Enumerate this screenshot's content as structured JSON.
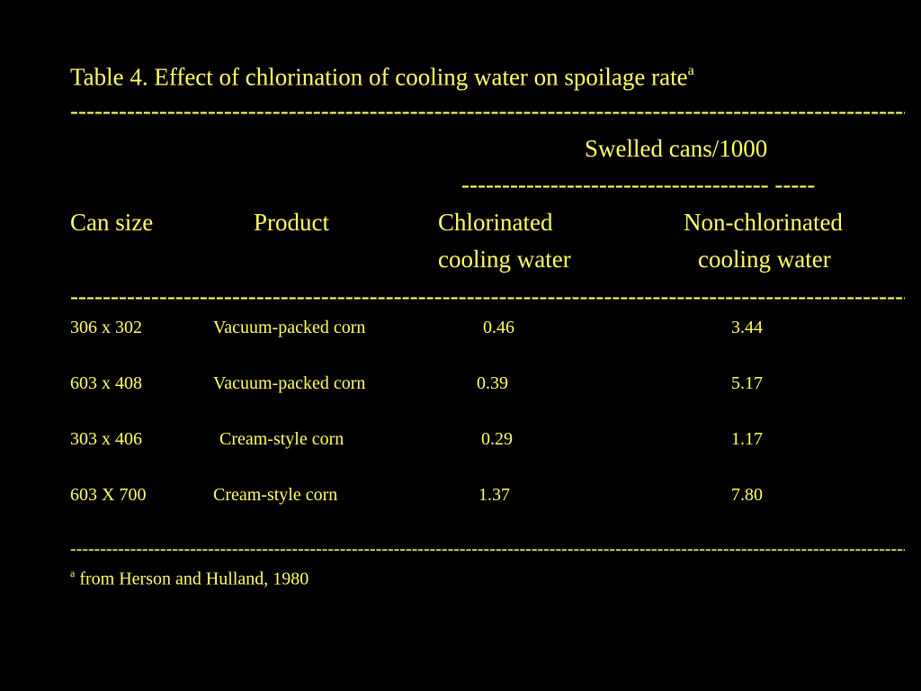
{
  "title": {
    "text": "Table 4. Effect of chlorination of cooling water on spoilage rate",
    "footnote_mark": "a"
  },
  "header": {
    "group_label": "Swelled cans/1000",
    "columns": {
      "can_size": "Can size",
      "product": "Product",
      "chlorinated_line1": "Chlorinated",
      "chlorinated_line2": "cooling water",
      "non_chlorinated_line1": "Non-chlorinated",
      "non_chlorinated_line2": "cooling water"
    }
  },
  "rows": [
    {
      "can_size": "306 x 302",
      "product": "Vacuum-packed corn",
      "chlorinated": "0.46",
      "non_chlorinated": "3.44"
    },
    {
      "can_size": "603 x 408",
      "product": "Vacuum-packed corn",
      "chlorinated": "0.39",
      "non_chlorinated": "5.17"
    },
    {
      "can_size": "303 x 406",
      "product": "Cream-style corn",
      "chlorinated": "0.29",
      "non_chlorinated": "1.17"
    },
    {
      "can_size": "603 X 700",
      "product": "Cream-style corn",
      "chlorinated": "1.37",
      "non_chlorinated": "7.80"
    }
  ],
  "footnote": {
    "mark": "a",
    "text": "from Herson and Hulland, 1980"
  },
  "colors": {
    "background": "#000000",
    "text": "#ffff66"
  }
}
